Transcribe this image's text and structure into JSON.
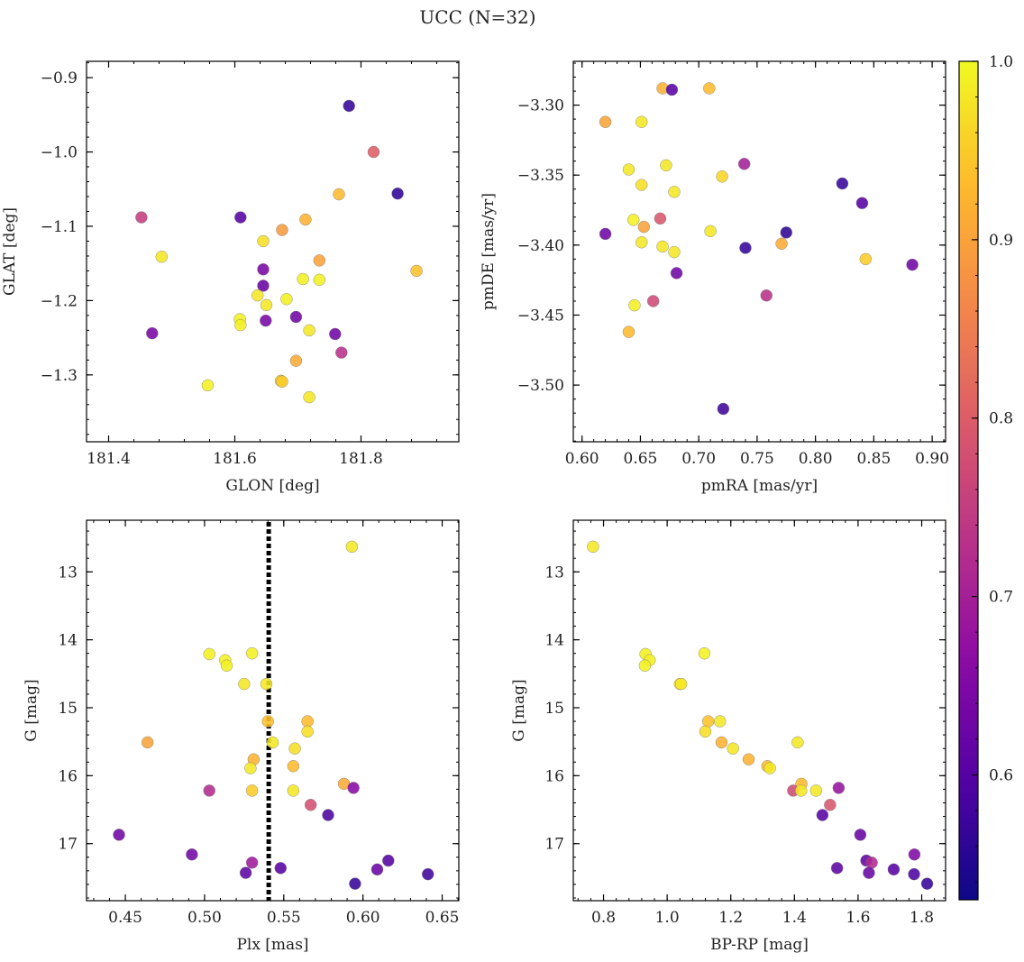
{
  "figure_title": "UCC (N=32)",
  "colorbar": {
    "range": [
      0.53,
      1.0
    ],
    "ticks": [
      0.6,
      0.7,
      0.8,
      0.9,
      1.0
    ],
    "colormap": "plasma"
  },
  "chart_data": [
    {
      "type": "scatter",
      "xlabel": "GLON [deg]",
      "ylabel": "GLAT [deg]",
      "xlim": [
        181.365,
        181.955
      ],
      "ylim": [
        -1.39,
        -0.878
      ],
      "xticks": [
        181.4,
        181.6,
        181.8
      ],
      "yticks": [
        -0.9,
        -1.0,
        -1.1,
        -1.2,
        -1.3
      ],
      "points": [
        {
          "x": 181.781,
          "y": -0.938,
          "c": 0.57
        },
        {
          "x": 181.82,
          "y": -1.0,
          "c": 0.8
        },
        {
          "x": 181.858,
          "y": -1.056,
          "c": 0.56
        },
        {
          "x": 181.765,
          "y": -1.057,
          "c": 0.93
        },
        {
          "x": 181.452,
          "y": -1.088,
          "c": 0.75
        },
        {
          "x": 181.609,
          "y": -1.088,
          "c": 0.6
        },
        {
          "x": 181.712,
          "y": -1.091,
          "c": 0.92
        },
        {
          "x": 181.675,
          "y": -1.105,
          "c": 0.89
        },
        {
          "x": 181.645,
          "y": -1.12,
          "c": 0.97
        },
        {
          "x": 181.484,
          "y": -1.141,
          "c": 0.98
        },
        {
          "x": 181.734,
          "y": -1.146,
          "c": 0.9
        },
        {
          "x": 181.645,
          "y": -1.158,
          "c": 0.64
        },
        {
          "x": 181.888,
          "y": -1.16,
          "c": 0.94
        },
        {
          "x": 181.708,
          "y": -1.171,
          "c": 0.99
        },
        {
          "x": 181.734,
          "y": -1.172,
          "c": 0.99
        },
        {
          "x": 181.645,
          "y": -1.18,
          "c": 0.62
        },
        {
          "x": 181.636,
          "y": -1.193,
          "c": 0.98
        },
        {
          "x": 181.682,
          "y": -1.198,
          "c": 0.99
        },
        {
          "x": 181.65,
          "y": -1.206,
          "c": 0.98
        },
        {
          "x": 181.697,
          "y": -1.222,
          "c": 0.63
        },
        {
          "x": 181.608,
          "y": -1.225,
          "c": 0.99
        },
        {
          "x": 181.649,
          "y": -1.227,
          "c": 0.64
        },
        {
          "x": 181.609,
          "y": -1.233,
          "c": 0.99
        },
        {
          "x": 181.718,
          "y": -1.24,
          "c": 0.98
        },
        {
          "x": 181.469,
          "y": -1.244,
          "c": 0.64
        },
        {
          "x": 181.759,
          "y": -1.245,
          "c": 0.63
        },
        {
          "x": 181.769,
          "y": -1.27,
          "c": 0.73
        },
        {
          "x": 181.697,
          "y": -1.281,
          "c": 0.91
        },
        {
          "x": 181.673,
          "y": -1.308,
          "c": 0.95
        },
        {
          "x": 181.675,
          "y": -1.309,
          "c": 0.95
        },
        {
          "x": 181.557,
          "y": -1.314,
          "c": 0.99
        },
        {
          "x": 181.718,
          "y": -1.33,
          "c": 0.98
        }
      ]
    },
    {
      "type": "scatter",
      "xlabel": "pmRA [mas/yr]",
      "ylabel": "pmDE [mas/yr]",
      "xlim": [
        0.5925,
        0.9115
      ],
      "ylim": [
        -3.5405,
        -3.2687
      ],
      "xticks": [
        0.6,
        0.65,
        0.7,
        0.75,
        0.8,
        0.85,
        0.9
      ],
      "xticklabels": [
        "0.60",
        "0.65",
        "0.70",
        "0.75",
        "0.80",
        "0.85",
        "0.90"
      ],
      "yticks": [
        -3.3,
        -3.35,
        -3.4,
        -3.45,
        -3.5
      ],
      "yticklabels": [
        "−3.30",
        "−3.35",
        "−3.40",
        "−3.45",
        "−3.50"
      ],
      "points": [
        {
          "x": 0.669,
          "y": -3.288,
          "c": 0.92
        },
        {
          "x": 0.677,
          "y": -3.289,
          "c": 0.6
        },
        {
          "x": 0.709,
          "y": -3.288,
          "c": 0.93
        },
        {
          "x": 0.62,
          "y": -3.312,
          "c": 0.9
        },
        {
          "x": 0.651,
          "y": -3.312,
          "c": 0.98
        },
        {
          "x": 0.739,
          "y": -3.342,
          "c": 0.7
        },
        {
          "x": 0.672,
          "y": -3.343,
          "c": 0.98
        },
        {
          "x": 0.64,
          "y": -3.346,
          "c": 0.98
        },
        {
          "x": 0.72,
          "y": -3.351,
          "c": 0.96
        },
        {
          "x": 0.823,
          "y": -3.356,
          "c": 0.57
        },
        {
          "x": 0.651,
          "y": -3.357,
          "c": 0.97
        },
        {
          "x": 0.679,
          "y": -3.362,
          "c": 0.98
        },
        {
          "x": 0.84,
          "y": -3.37,
          "c": 0.6
        },
        {
          "x": 0.644,
          "y": -3.382,
          "c": 0.99
        },
        {
          "x": 0.667,
          "y": -3.381,
          "c": 0.79
        },
        {
          "x": 0.653,
          "y": -3.387,
          "c": 0.9
        },
        {
          "x": 0.71,
          "y": -3.39,
          "c": 0.98
        },
        {
          "x": 0.62,
          "y": -3.392,
          "c": 0.63
        },
        {
          "x": 0.775,
          "y": -3.391,
          "c": 0.56
        },
        {
          "x": 0.651,
          "y": -3.398,
          "c": 0.98
        },
        {
          "x": 0.771,
          "y": -3.399,
          "c": 0.91
        },
        {
          "x": 0.669,
          "y": -3.401,
          "c": 0.98
        },
        {
          "x": 0.74,
          "y": -3.402,
          "c": 0.57
        },
        {
          "x": 0.679,
          "y": -3.405,
          "c": 0.98
        },
        {
          "x": 0.843,
          "y": -3.41,
          "c": 0.95
        },
        {
          "x": 0.883,
          "y": -3.414,
          "c": 0.63
        },
        {
          "x": 0.681,
          "y": -3.42,
          "c": 0.63
        },
        {
          "x": 0.758,
          "y": -3.436,
          "c": 0.73
        },
        {
          "x": 0.661,
          "y": -3.44,
          "c": 0.77
        },
        {
          "x": 0.645,
          "y": -3.443,
          "c": 0.99
        },
        {
          "x": 0.64,
          "y": -3.462,
          "c": 0.93
        },
        {
          "x": 0.721,
          "y": -3.517,
          "c": 0.58
        }
      ]
    },
    {
      "type": "scatter",
      "xlabel": "Plx [mas]",
      "ylabel": "G [mag]",
      "xlim": [
        0.4255,
        0.6605
      ],
      "ylim": [
        17.84,
        12.24
      ],
      "xticks": [
        0.45,
        0.5,
        0.55,
        0.6,
        0.65
      ],
      "xticklabels": [
        "0.45",
        "0.50",
        "0.55",
        "0.60",
        "0.65"
      ],
      "yticks": [
        13,
        14,
        15,
        16,
        17
      ],
      "vline": {
        "x": 0.5405,
        "style": "dotted"
      },
      "points": [
        {
          "x": 0.593,
          "y": 12.63,
          "c": 0.98
        },
        {
          "x": 0.503,
          "y": 14.21,
          "c": 0.99
        },
        {
          "x": 0.53,
          "y": 14.2,
          "c": 0.99
        },
        {
          "x": 0.513,
          "y": 14.3,
          "c": 0.99
        },
        {
          "x": 0.514,
          "y": 14.38,
          "c": 0.99
        },
        {
          "x": 0.525,
          "y": 14.65,
          "c": 0.98
        },
        {
          "x": 0.539,
          "y": 14.65,
          "c": 0.98
        },
        {
          "x": 0.54,
          "y": 15.2,
          "c": 0.94
        },
        {
          "x": 0.565,
          "y": 15.2,
          "c": 0.93
        },
        {
          "x": 0.464,
          "y": 15.51,
          "c": 0.9
        },
        {
          "x": 0.543,
          "y": 15.51,
          "c": 0.98
        },
        {
          "x": 0.557,
          "y": 15.6,
          "c": 0.97
        },
        {
          "x": 0.565,
          "y": 15.35,
          "c": 0.97
        },
        {
          "x": 0.531,
          "y": 15.76,
          "c": 0.92
        },
        {
          "x": 0.529,
          "y": 15.89,
          "c": 0.98
        },
        {
          "x": 0.556,
          "y": 15.86,
          "c": 0.93
        },
        {
          "x": 0.588,
          "y": 16.12,
          "c": 0.91
        },
        {
          "x": 0.503,
          "y": 16.22,
          "c": 0.72
        },
        {
          "x": 0.53,
          "y": 16.22,
          "c": 0.95
        },
        {
          "x": 0.556,
          "y": 16.22,
          "c": 0.98
        },
        {
          "x": 0.594,
          "y": 16.18,
          "c": 0.66
        },
        {
          "x": 0.567,
          "y": 16.43,
          "c": 0.78
        },
        {
          "x": 0.578,
          "y": 16.58,
          "c": 0.59
        },
        {
          "x": 0.446,
          "y": 16.87,
          "c": 0.63
        },
        {
          "x": 0.492,
          "y": 17.16,
          "c": 0.63
        },
        {
          "x": 0.616,
          "y": 17.25,
          "c": 0.6
        },
        {
          "x": 0.53,
          "y": 17.28,
          "c": 0.69
        },
        {
          "x": 0.548,
          "y": 17.36,
          "c": 0.6
        },
        {
          "x": 0.609,
          "y": 17.38,
          "c": 0.62
        },
        {
          "x": 0.526,
          "y": 17.43,
          "c": 0.61
        },
        {
          "x": 0.641,
          "y": 17.45,
          "c": 0.58
        },
        {
          "x": 0.595,
          "y": 17.59,
          "c": 0.57
        }
      ]
    },
    {
      "type": "scatter",
      "xlabel": "BP-RP [mag]",
      "ylabel": "G [mag]",
      "xlim": [
        0.705,
        1.875
      ],
      "ylim": [
        17.84,
        12.24
      ],
      "xticks": [
        0.8,
        1.0,
        1.2,
        1.4,
        1.6,
        1.8
      ],
      "xticklabels": [
        "0.8",
        "1.0",
        "1.2",
        "1.4",
        "1.6",
        "1.8"
      ],
      "yticks": [
        13,
        14,
        15,
        16,
        17
      ],
      "points": [
        {
          "x": 0.767,
          "y": 12.63,
          "c": 0.98
        },
        {
          "x": 0.932,
          "y": 14.21,
          "c": 0.99
        },
        {
          "x": 1.117,
          "y": 14.2,
          "c": 0.99
        },
        {
          "x": 0.945,
          "y": 14.3,
          "c": 0.99
        },
        {
          "x": 0.93,
          "y": 14.38,
          "c": 0.99
        },
        {
          "x": 1.04,
          "y": 14.65,
          "c": 0.98
        },
        {
          "x": 1.044,
          "y": 14.65,
          "c": 0.98
        },
        {
          "x": 1.129,
          "y": 15.2,
          "c": 0.94
        },
        {
          "x": 1.166,
          "y": 15.2,
          "c": 0.98
        },
        {
          "x": 1.12,
          "y": 15.35,
          "c": 0.97
        },
        {
          "x": 1.171,
          "y": 15.51,
          "c": 0.92
        },
        {
          "x": 1.41,
          "y": 15.51,
          "c": 0.98
        },
        {
          "x": 1.207,
          "y": 15.6,
          "c": 0.98
        },
        {
          "x": 1.256,
          "y": 15.76,
          "c": 0.92
        },
        {
          "x": 1.315,
          "y": 15.86,
          "c": 0.93
        },
        {
          "x": 1.323,
          "y": 15.89,
          "c": 0.98
        },
        {
          "x": 1.422,
          "y": 16.12,
          "c": 0.93
        },
        {
          "x": 1.396,
          "y": 16.22,
          "c": 0.77
        },
        {
          "x": 1.421,
          "y": 16.22,
          "c": 0.98
        },
        {
          "x": 1.468,
          "y": 16.22,
          "c": 0.98
        },
        {
          "x": 1.539,
          "y": 16.18,
          "c": 0.68
        },
        {
          "x": 1.512,
          "y": 16.43,
          "c": 0.79
        },
        {
          "x": 1.488,
          "y": 16.58,
          "c": 0.6
        },
        {
          "x": 1.607,
          "y": 16.87,
          "c": 0.62
        },
        {
          "x": 1.777,
          "y": 17.16,
          "c": 0.65
        },
        {
          "x": 1.626,
          "y": 17.25,
          "c": 0.61
        },
        {
          "x": 1.643,
          "y": 17.28,
          "c": 0.72
        },
        {
          "x": 1.534,
          "y": 17.36,
          "c": 0.61
        },
        {
          "x": 1.712,
          "y": 17.38,
          "c": 0.6
        },
        {
          "x": 1.634,
          "y": 17.43,
          "c": 0.62
        },
        {
          "x": 1.776,
          "y": 17.45,
          "c": 0.59
        },
        {
          "x": 1.817,
          "y": 17.59,
          "c": 0.57
        }
      ]
    }
  ]
}
